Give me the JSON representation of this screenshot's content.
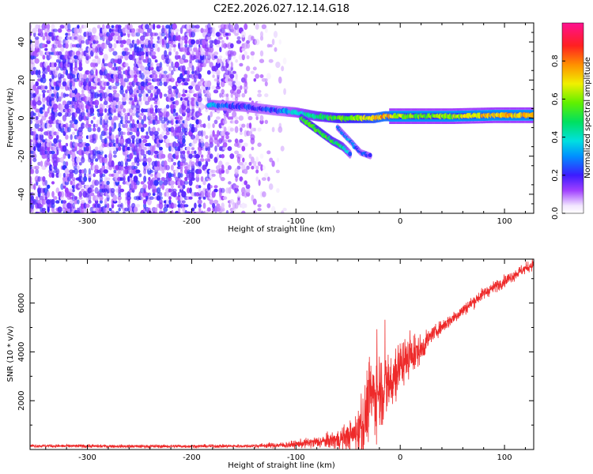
{
  "title": "C2E2.2026.027.12.14.G18",
  "colors": {
    "snr_line": "#ee2a2a",
    "noise_purple": "#6a14e6",
    "plot_background": "#ffffff"
  },
  "chart_data": [
    {
      "type": "heatmap",
      "xlabel": "Height of straight line (km)",
      "ylabel": "Frequency (Hz)",
      "xlim": [
        -355,
        128
      ],
      "ylim": [
        -50,
        50
      ],
      "x_ticks": [
        -300,
        -200,
        -100,
        0,
        100
      ],
      "y_ticks": [
        -40,
        -20,
        0,
        20,
        40
      ],
      "colorbar": {
        "label": "Normalized spectral amplitude",
        "range": [
          0,
          1
        ],
        "ticks": [
          "0.0",
          "0.2",
          "0.4",
          "0.6",
          "0.8"
        ],
        "colormap": "rainbow (white-purple-blue-cyan-green-yellow-orange-red-magenta)"
      },
      "features": {
        "noise_region_x": [
          -355,
          -110
        ],
        "noise_amplitude": 0.15,
        "carrier_track": [
          {
            "x": -183,
            "y": 7,
            "amp": 0.33
          },
          {
            "x": -150,
            "y": 6,
            "amp": 0.2
          },
          {
            "x": -120,
            "y": 4,
            "amp": 0.25
          },
          {
            "x": -100,
            "y": 3,
            "amp": 0.35
          },
          {
            "x": -80,
            "y": 1,
            "amp": 0.45
          },
          {
            "x": -60,
            "y": 0,
            "amp": 0.55
          },
          {
            "x": -40,
            "y": 0,
            "amp": 0.6
          },
          {
            "x": -25,
            "y": 0,
            "amp": 0.7
          },
          {
            "x": -15,
            "y": 1,
            "amp": 0.78
          },
          {
            "x": 0,
            "y": 1,
            "amp": 0.62
          },
          {
            "x": 20,
            "y": 1,
            "amp": 0.55
          },
          {
            "x": 50,
            "y": 1,
            "amp": 0.6
          },
          {
            "x": 90,
            "y": 1.5,
            "amp": 0.75
          },
          {
            "x": 128,
            "y": 1.5,
            "amp": 0.7
          }
        ],
        "lower_branch": [
          {
            "x": -95,
            "y": 0,
            "amp": 0.5
          },
          {
            "x": -80,
            "y": -6,
            "amp": 0.55
          },
          {
            "x": -65,
            "y": -12,
            "amp": 0.5
          },
          {
            "x": -55,
            "y": -15,
            "amp": 0.45
          },
          {
            "x": -48,
            "y": -19,
            "amp": 0.3
          }
        ],
        "second_lower_branch": [
          {
            "x": -60,
            "y": -5,
            "amp": 0.3
          },
          {
            "x": -48,
            "y": -12,
            "amp": 0.3
          },
          {
            "x": -38,
            "y": -18,
            "amp": 0.25
          },
          {
            "x": -28,
            "y": -20,
            "amp": 0.2
          }
        ]
      }
    },
    {
      "type": "line",
      "xlabel": "Height of straight line (km)",
      "ylabel": "SNR (10 * v/v)",
      "xlim": [
        -355,
        128
      ],
      "ylim": [
        0,
        7800
      ],
      "x_ticks": [
        -300,
        -200,
        -100,
        0,
        100
      ],
      "y_ticks": [
        2000,
        4000,
        6000
      ],
      "series": [
        {
          "color": "#ee2a2a",
          "trend": [
            [
              -355,
              150
            ],
            [
              -250,
              130
            ],
            [
              -150,
              140
            ],
            [
              -110,
              180
            ],
            [
              -80,
              300
            ],
            [
              -60,
              400
            ],
            [
              -45,
              600
            ],
            [
              -35,
              1000
            ],
            [
              -30,
              2200
            ],
            [
              -25,
              2200
            ],
            [
              -20,
              2500
            ],
            [
              -15,
              2500
            ],
            [
              -10,
              2700
            ],
            [
              -5,
              3000
            ],
            [
              0,
              3500
            ],
            [
              10,
              3800
            ],
            [
              20,
              4100
            ],
            [
              30,
              4700
            ],
            [
              45,
              5200
            ],
            [
              60,
              5700
            ],
            [
              80,
              6400
            ],
            [
              100,
              6900
            ],
            [
              115,
              7300
            ],
            [
              128,
              7600
            ]
          ],
          "noise_envelope": [
            [
              -355,
              60
            ],
            [
              -150,
              60
            ],
            [
              -100,
              130
            ],
            [
              -70,
              260
            ],
            [
              -45,
              550
            ],
            [
              -35,
              1300
            ],
            [
              -25,
              1500
            ],
            [
              -10,
              1200
            ],
            [
              0,
              900
            ],
            [
              10,
              700
            ],
            [
              20,
              500
            ],
            [
              30,
              250
            ],
            [
              128,
              200
            ]
          ]
        }
      ]
    }
  ]
}
